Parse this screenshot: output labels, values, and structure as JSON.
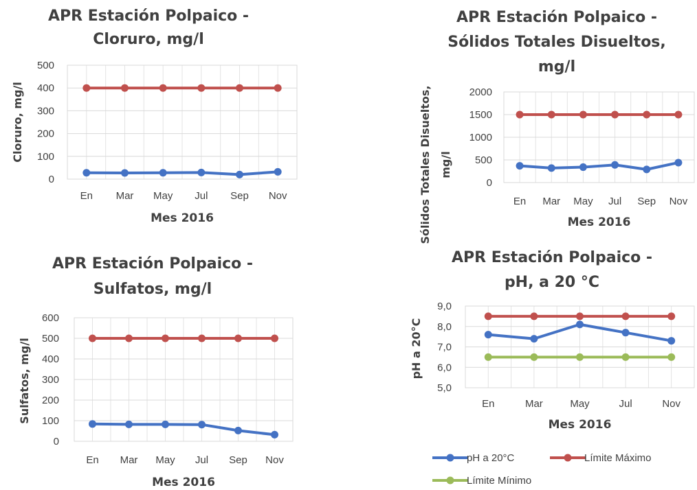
{
  "chart_data": [
    {
      "type": "line",
      "title_lines": [
        "APR  Estación Polpaico  -",
        "Cloruro, mg/l"
      ],
      "xlabel": "Mes 2016",
      "ylabel_lines": [
        "Cloruro, mg/l"
      ],
      "categories": [
        "En",
        "Mar",
        "May",
        "Jul",
        "Sep",
        "Nov"
      ],
      "y_ticks": [
        "0",
        "100",
        "200",
        "300",
        "400",
        "500"
      ],
      "ylim": [
        0,
        500
      ],
      "grid": true,
      "series": [
        {
          "color": "#4472c4",
          "values": [
            28,
            27,
            28,
            29,
            20,
            32
          ]
        },
        {
          "color": "#c0504d",
          "values": [
            400,
            400,
            400,
            400,
            400,
            400
          ]
        }
      ]
    },
    {
      "type": "line",
      "title_lines": [
        "APR  Estación Polpaico  -",
        "Sólidos Totales Disueltos,",
        "mg/l"
      ],
      "xlabel": "Mes 2016",
      "ylabel_lines": [
        "Sólidos Totales Disueltos,",
        "mg/l"
      ],
      "categories": [
        "En",
        "Mar",
        "May",
        "Jul",
        "Sep",
        "Nov"
      ],
      "y_ticks": [
        "0",
        "500",
        "1000",
        "1500",
        "2000"
      ],
      "ylim": [
        0,
        2000
      ],
      "grid": true,
      "series": [
        {
          "color": "#4472c4",
          "values": [
            370,
            320,
            340,
            390,
            290,
            440
          ]
        },
        {
          "color": "#c0504d",
          "values": [
            1500,
            1500,
            1500,
            1500,
            1500,
            1500
          ]
        }
      ]
    },
    {
      "type": "line",
      "title_lines": [
        "APR  Estación Polpaico  -",
        "Sulfatos, mg/l"
      ],
      "xlabel": "Mes 2016",
      "ylabel_lines": [
        "Sulfatos, mg/l"
      ],
      "categories": [
        "En",
        "Mar",
        "May",
        "Jul",
        "Sep",
        "Nov"
      ],
      "y_ticks": [
        "0",
        "100",
        "200",
        "300",
        "400",
        "500",
        "600"
      ],
      "ylim": [
        0,
        600
      ],
      "grid": true,
      "series": [
        {
          "color": "#4472c4",
          "values": [
            84,
            82,
            82,
            81,
            52,
            32
          ]
        },
        {
          "color": "#c0504d",
          "values": [
            500,
            500,
            500,
            500,
            500,
            500
          ]
        }
      ]
    },
    {
      "type": "line",
      "title_lines": [
        "APR  Estación Polpaico  -",
        "pH, a 20 °C"
      ],
      "xlabel": "Mes 2016",
      "ylabel_lines": [
        "pH a 20°C"
      ],
      "categories": [
        "En",
        "Mar",
        "May",
        "Jul",
        "Nov"
      ],
      "y_ticks": [
        "5,0",
        "6,0",
        "7,0",
        "8,0",
        "9,0"
      ],
      "ylim": [
        5,
        9
      ],
      "grid": true,
      "legend_position": "bottom",
      "series": [
        {
          "name": "pH a 20°C",
          "color": "#4472c4",
          "values": [
            7.6,
            7.4,
            8.1,
            7.7,
            7.3
          ]
        },
        {
          "name": "Límite Máximo",
          "color": "#c0504d",
          "values": [
            8.5,
            8.5,
            8.5,
            8.5,
            8.5
          ]
        },
        {
          "name": "Límite Mínimo",
          "color": "#9bbb59",
          "values": [
            6.5,
            6.5,
            6.5,
            6.5,
            6.5
          ]
        }
      ]
    }
  ]
}
